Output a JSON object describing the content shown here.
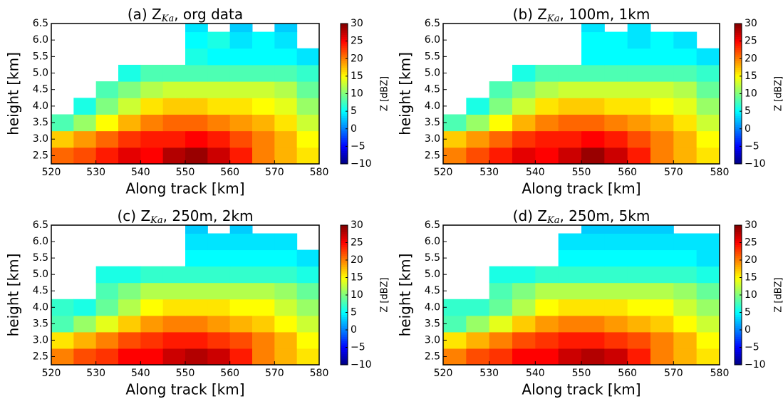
{
  "chart_data": [
    {
      "type": "heatmap",
      "title": "(a) Z",
      "title_sub": "Ka",
      "title_rest": ", org data",
      "xlabel": "Along track [km]",
      "ylabel": "height [km]",
      "xbins": [
        520,
        525,
        530,
        535,
        540,
        545,
        550,
        555,
        560,
        565,
        570,
        575,
        580
      ],
      "ybins": [
        2.25,
        2.75,
        3.25,
        3.75,
        4.25,
        4.75,
        5.25,
        5.75,
        6.25,
        6.5
      ],
      "values": [
        [
          21,
          22,
          24,
          26,
          25,
          28,
          29,
          27,
          24,
          20,
          18,
          16
        ],
        [
          17,
          19,
          21,
          23,
          24,
          24,
          25,
          24,
          22,
          20,
          18,
          15
        ],
        [
          8,
          11,
          15,
          18,
          20,
          21,
          21,
          20,
          19,
          18,
          16,
          13
        ],
        [
          null,
          6,
          10,
          13,
          16,
          17,
          17,
          16,
          16,
          15,
          14,
          11
        ],
        [
          null,
          null,
          8,
          10,
          12,
          13,
          13,
          13,
          13,
          13,
          12,
          9
        ],
        [
          null,
          null,
          null,
          6,
          8,
          8,
          8,
          8,
          8,
          8,
          8,
          7
        ],
        [
          null,
          null,
          null,
          null,
          null,
          null,
          6,
          5,
          5,
          5,
          5,
          4
        ],
        [
          null,
          null,
          null,
          null,
          null,
          null,
          5,
          6,
          4,
          5,
          4,
          null
        ],
        [
          null,
          null,
          null,
          null,
          null,
          null,
          4,
          null,
          3,
          null,
          3,
          null
        ]
      ],
      "xlim": [
        520,
        580
      ],
      "ylim": [
        2.25,
        6.5
      ],
      "xticks": [
        520,
        530,
        540,
        550,
        560,
        570,
        580
      ],
      "yticks": [
        2.5,
        {
          "value": 3,
          "label": "3.0"
        },
        3.5,
        {
          "value": 4,
          "label": "4.0"
        },
        4.5,
        {
          "value": 5,
          "label": "5.0"
        },
        5.5,
        {
          "value": 6,
          "label": "6.0"
        },
        6.5
      ],
      "clim": [
        -10,
        30
      ],
      "cticks": [
        {
          "value": -10,
          "label": "−10"
        },
        {
          "value": -5,
          "label": "−5"
        },
        0,
        5,
        10,
        15,
        20,
        25,
        30
      ],
      "clabel": "Z [dBZ]",
      "colormap": "jet"
    },
    {
      "type": "heatmap",
      "title": "(b) Z",
      "title_sub": "Ka",
      "title_rest": ", 100m, 1km",
      "xlabel": "Along track [km]",
      "ylabel": "height [km]",
      "xbins": [
        520,
        525,
        530,
        535,
        540,
        545,
        550,
        555,
        560,
        565,
        570,
        575,
        580
      ],
      "ybins": [
        2.25,
        2.75,
        3.25,
        3.75,
        4.25,
        4.75,
        5.25,
        5.75,
        6.25,
        6.5
      ],
      "values": [
        [
          20,
          22,
          24,
          26,
          25,
          27,
          29,
          27,
          24,
          20,
          18,
          16
        ],
        [
          17,
          19,
          21,
          23,
          24,
          24,
          25,
          24,
          22,
          20,
          18,
          15
        ],
        [
          8,
          11,
          15,
          18,
          20,
          21,
          21,
          20,
          19,
          18,
          16,
          13
        ],
        [
          null,
          6,
          10,
          13,
          16,
          17,
          17,
          16,
          16,
          15,
          14,
          11
        ],
        [
          null,
          null,
          8,
          10,
          12,
          13,
          13,
          13,
          13,
          13,
          12,
          9
        ],
        [
          null,
          null,
          null,
          6,
          8,
          8,
          8,
          8,
          8,
          8,
          8,
          7
        ],
        [
          null,
          null,
          null,
          null,
          null,
          null,
          5,
          5,
          5,
          5,
          5,
          4
        ],
        [
          null,
          null,
          null,
          null,
          null,
          null,
          5,
          5,
          4,
          5,
          4,
          null
        ],
        [
          null,
          null,
          null,
          null,
          null,
          null,
          4,
          null,
          4,
          null,
          null,
          null
        ]
      ],
      "xlim": [
        520,
        580
      ],
      "ylim": [
        2.25,
        6.5
      ],
      "xticks": [
        520,
        530,
        540,
        550,
        560,
        570,
        580
      ],
      "yticks": [
        2.5,
        {
          "value": 3,
          "label": "3.0"
        },
        3.5,
        {
          "value": 4,
          "label": "4.0"
        },
        4.5,
        {
          "value": 5,
          "label": "5.0"
        },
        5.5,
        {
          "value": 6,
          "label": "6.0"
        },
        6.5
      ],
      "clim": [
        -10,
        30
      ],
      "cticks": [
        {
          "value": -10,
          "label": "−10"
        },
        {
          "value": -5,
          "label": "−5"
        },
        0,
        5,
        10,
        15,
        20,
        25,
        30
      ],
      "clabel": "Z [dBZ]",
      "colormap": "jet"
    },
    {
      "type": "heatmap",
      "title": "(c) Z",
      "title_sub": "Ka",
      "title_rest": ", 250m, 2km",
      "xlabel": "Along track [km]",
      "ylabel": "height [km]",
      "xbins": [
        520,
        525,
        530,
        535,
        540,
        545,
        550,
        555,
        560,
        565,
        570,
        575,
        580
      ],
      "ybins": [
        2.25,
        2.75,
        3.25,
        3.75,
        4.25,
        4.75,
        5.25,
        5.75,
        6.25,
        6.5
      ],
      "values": [
        [
          20,
          22,
          23,
          25,
          25,
          27,
          28,
          27,
          24,
          20,
          18,
          16
        ],
        [
          16,
          18,
          20,
          22,
          23,
          24,
          24,
          23,
          22,
          20,
          18,
          15
        ],
        [
          8,
          11,
          14,
          17,
          19,
          20,
          20,
          19,
          18,
          17,
          15,
          13
        ],
        [
          7,
          6,
          9,
          12,
          15,
          16,
          16,
          16,
          15,
          15,
          13,
          11
        ],
        [
          null,
          null,
          8,
          10,
          12,
          12,
          12,
          12,
          12,
          12,
          11,
          9
        ],
        [
          null,
          null,
          6,
          6,
          7,
          7,
          7,
          7,
          7,
          7,
          7,
          6
        ],
        [
          null,
          null,
          null,
          null,
          null,
          null,
          5,
          5,
          5,
          5,
          5,
          4
        ],
        [
          null,
          null,
          null,
          null,
          null,
          null,
          4,
          4,
          4,
          4,
          4,
          null
        ],
        [
          null,
          null,
          null,
          null,
          null,
          null,
          3,
          null,
          3,
          null,
          null,
          null
        ]
      ],
      "xlim": [
        520,
        580
      ],
      "ylim": [
        2.25,
        6.5
      ],
      "xticks": [
        520,
        530,
        540,
        550,
        560,
        570,
        580
      ],
      "yticks": [
        2.5,
        {
          "value": 3,
          "label": "3.0"
        },
        3.5,
        {
          "value": 4,
          "label": "4.0"
        },
        4.5,
        {
          "value": 5,
          "label": "5.0"
        },
        5.5,
        {
          "value": 6,
          "label": "6.0"
        },
        6.5
      ],
      "clim": [
        -10,
        30
      ],
      "cticks": [
        {
          "value": -10,
          "label": "−10"
        },
        {
          "value": -5,
          "label": "−5"
        },
        0,
        5,
        10,
        15,
        20,
        25,
        30
      ],
      "clabel": "Z [dBZ]",
      "colormap": "jet"
    },
    {
      "type": "heatmap",
      "title": "(d) Z",
      "title_sub": "Ka",
      "title_rest": ", 250m, 5km",
      "xlabel": "Along track [km]",
      "ylabel": "height [km]",
      "xbins": [
        520,
        525,
        530,
        535,
        540,
        545,
        550,
        555,
        560,
        565,
        570,
        575,
        580
      ],
      "ybins": [
        2.25,
        2.75,
        3.25,
        3.75,
        4.25,
        4.75,
        5.25,
        5.75,
        6.25,
        6.5
      ],
      "values": [
        [
          20,
          22,
          23,
          25,
          25,
          27,
          28,
          27,
          24,
          20,
          18,
          16
        ],
        [
          16,
          18,
          20,
          22,
          23,
          24,
          24,
          23,
          22,
          20,
          18,
          15
        ],
        [
          8,
          11,
          14,
          17,
          19,
          20,
          20,
          19,
          18,
          17,
          15,
          13
        ],
        [
          7,
          7,
          9,
          12,
          15,
          16,
          16,
          16,
          15,
          15,
          13,
          11
        ],
        [
          null,
          null,
          8,
          10,
          12,
          12,
          12,
          12,
          12,
          12,
          11,
          9
        ],
        [
          null,
          null,
          6,
          6,
          7,
          7,
          7,
          7,
          7,
          7,
          7,
          6
        ],
        [
          null,
          null,
          null,
          null,
          null,
          5,
          5,
          5,
          5,
          5,
          5,
          4
        ],
        [
          null,
          null,
          null,
          null,
          null,
          4,
          4,
          4,
          4,
          4,
          4,
          4
        ],
        [
          null,
          null,
          null,
          null,
          null,
          null,
          3,
          3,
          3,
          3,
          null,
          null
        ]
      ],
      "xlim": [
        520,
        580
      ],
      "ylim": [
        2.25,
        6.5
      ],
      "xticks": [
        520,
        530,
        540,
        550,
        560,
        570,
        580
      ],
      "yticks": [
        2.5,
        {
          "value": 3,
          "label": "3.0"
        },
        3.5,
        {
          "value": 4,
          "label": "4.0"
        },
        4.5,
        {
          "value": 5,
          "label": "5.0"
        },
        5.5,
        {
          "value": 6,
          "label": "6.0"
        },
        6.5
      ],
      "clim": [
        -10,
        30
      ],
      "cticks": [
        {
          "value": -10,
          "label": "−10"
        },
        {
          "value": -5,
          "label": "−5"
        },
        0,
        5,
        10,
        15,
        20,
        25,
        30
      ],
      "clabel": "Z [dBZ]",
      "colormap": "jet"
    }
  ]
}
